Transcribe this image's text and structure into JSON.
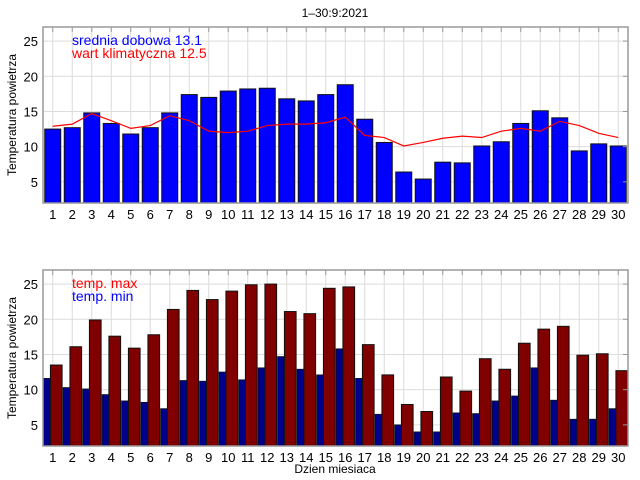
{
  "chart_data": [
    {
      "type": "bar",
      "title": "1–30:9:2021",
      "xlabel": "",
      "ylabel": "Temperatura powietrza",
      "ylim": [
        2,
        27
      ],
      "xlim": [
        0.5,
        30.5
      ],
      "grid": true,
      "yticks": [
        5,
        10,
        15,
        20,
        25
      ],
      "categories": [
        "1",
        "2",
        "3",
        "4",
        "5",
        "6",
        "7",
        "8",
        "9",
        "10",
        "11",
        "12",
        "13",
        "14",
        "15",
        "16",
        "17",
        "18",
        "19",
        "20",
        "21",
        "22",
        "23",
        "24",
        "25",
        "26",
        "27",
        "28",
        "29",
        "30"
      ],
      "legend_placement": "top-left",
      "series": [
        {
          "name": "srednia dobowa 13.1",
          "kind": "bar",
          "color": "#0000ff",
          "values": [
            12.5,
            12.7,
            14.8,
            13.3,
            11.8,
            12.7,
            14.8,
            17.4,
            17.0,
            17.9,
            18.2,
            18.3,
            16.8,
            16.5,
            17.4,
            18.8,
            13.9,
            10.6,
            6.4,
            5.4,
            7.8,
            7.7,
            10.1,
            10.7,
            13.3,
            15.1,
            14.1,
            9.4,
            10.4,
            10.1
          ]
        },
        {
          "name": "wart klimatyczna 12.5",
          "kind": "line",
          "color": "#ff0000",
          "values": [
            12.9,
            13.2,
            14.7,
            13.7,
            12.6,
            13.0,
            14.4,
            13.7,
            12.2,
            12.0,
            12.2,
            13.0,
            13.2,
            13.2,
            13.4,
            14.2,
            11.6,
            11.3,
            10.1,
            10.6,
            11.2,
            11.5,
            11.3,
            12.2,
            12.6,
            12.2,
            13.6,
            13.0,
            11.9,
            11.3
          ]
        }
      ]
    },
    {
      "type": "bar",
      "title": "",
      "xlabel": "Dzien miesiaca",
      "ylabel": "Temperatura powietrza",
      "ylim": [
        2,
        27
      ],
      "xlim": [
        0.5,
        30.5
      ],
      "grid": true,
      "yticks": [
        5,
        10,
        15,
        20,
        25
      ],
      "categories": [
        "1",
        "2",
        "3",
        "4",
        "5",
        "6",
        "7",
        "8",
        "9",
        "10",
        "11",
        "12",
        "13",
        "14",
        "15",
        "16",
        "17",
        "18",
        "19",
        "20",
        "21",
        "22",
        "23",
        "24",
        "25",
        "26",
        "27",
        "28",
        "29",
        "30"
      ],
      "legend_placement": "top-left",
      "series": [
        {
          "name": "temp. max",
          "kind": "bar",
          "color": "#800000",
          "legend_color": "#ff0000",
          "values": [
            13.5,
            16.1,
            19.9,
            17.6,
            15.9,
            17.8,
            21.4,
            24.1,
            22.8,
            24.0,
            24.9,
            25.0,
            21.1,
            20.8,
            24.4,
            24.6,
            16.4,
            12.1,
            7.9,
            6.9,
            11.8,
            9.8,
            14.4,
            12.9,
            16.6,
            18.6,
            19.0,
            14.9,
            15.1,
            12.7
          ]
        },
        {
          "name": "temp. min",
          "kind": "bar",
          "color": "#00008b",
          "legend_color": "#0000ff",
          "values": [
            11.6,
            10.3,
            10.1,
            9.3,
            8.4,
            8.2,
            7.3,
            11.3,
            11.2,
            12.5,
            11.4,
            13.1,
            14.7,
            12.9,
            12.1,
            15.8,
            11.6,
            6.5,
            5.0,
            4.0,
            4.0,
            6.7,
            6.6,
            8.4,
            9.1,
            13.1,
            8.5,
            5.8,
            5.8,
            7.3
          ]
        }
      ]
    }
  ]
}
